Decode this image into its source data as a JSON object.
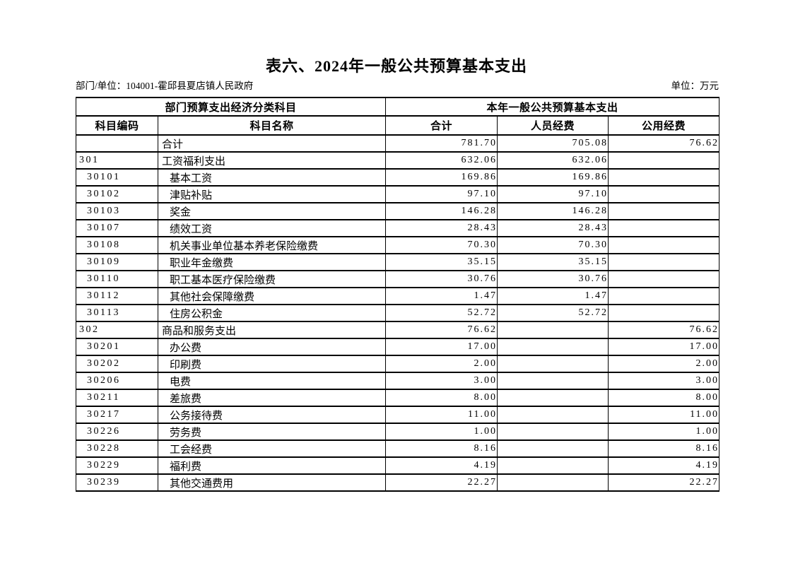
{
  "page": {
    "title": "表六、2024年一般公共预算基本支出",
    "meta_left": "部门/单位：104001-霍邱县夏店镇人民政府",
    "meta_right": "单位：万元",
    "text_color": "#000000",
    "background_color": "#ffffff"
  },
  "table": {
    "group_headers": {
      "left": "部门预算支出经济分类科目",
      "right": "本年一般公共预算基本支出"
    },
    "columns": {
      "code": "科目编码",
      "name": "科目名称",
      "total": "合计",
      "personnel": "人员经费",
      "public": "公用经费"
    },
    "rows": [
      {
        "code": "",
        "name": "合计",
        "total": "781.70",
        "personnel": "705.08",
        "public": "76.62",
        "level": 0
      },
      {
        "code": "301",
        "name": "工资福利支出",
        "total": "632.06",
        "personnel": "632.06",
        "public": "",
        "level": 0
      },
      {
        "code": "30101",
        "name": "基本工资",
        "total": "169.86",
        "personnel": "169.86",
        "public": "",
        "level": 1
      },
      {
        "code": "30102",
        "name": "津贴补贴",
        "total": "97.10",
        "personnel": "97.10",
        "public": "",
        "level": 1
      },
      {
        "code": "30103",
        "name": "奖金",
        "total": "146.28",
        "personnel": "146.28",
        "public": "",
        "level": 1
      },
      {
        "code": "30107",
        "name": "绩效工资",
        "total": "28.43",
        "personnel": "28.43",
        "public": "",
        "level": 1
      },
      {
        "code": "30108",
        "name": "机关事业单位基本养老保险缴费",
        "total": "70.30",
        "personnel": "70.30",
        "public": "",
        "level": 1
      },
      {
        "code": "30109",
        "name": "职业年金缴费",
        "total": "35.15",
        "personnel": "35.15",
        "public": "",
        "level": 1
      },
      {
        "code": "30110",
        "name": "职工基本医疗保险缴费",
        "total": "30.76",
        "personnel": "30.76",
        "public": "",
        "level": 1
      },
      {
        "code": "30112",
        "name": "其他社会保障缴费",
        "total": "1.47",
        "personnel": "1.47",
        "public": "",
        "level": 1
      },
      {
        "code": "30113",
        "name": "住房公积金",
        "total": "52.72",
        "personnel": "52.72",
        "public": "",
        "level": 1
      },
      {
        "code": "302",
        "name": "商品和服务支出",
        "total": "76.62",
        "personnel": "",
        "public": "76.62",
        "level": 0
      },
      {
        "code": "30201",
        "name": "办公费",
        "total": "17.00",
        "personnel": "",
        "public": "17.00",
        "level": 1
      },
      {
        "code": "30202",
        "name": "印刷费",
        "total": "2.00",
        "personnel": "",
        "public": "2.00",
        "level": 1
      },
      {
        "code": "30206",
        "name": "电费",
        "total": "3.00",
        "personnel": "",
        "public": "3.00",
        "level": 1
      },
      {
        "code": "30211",
        "name": "差旅费",
        "total": "8.00",
        "personnel": "",
        "public": "8.00",
        "level": 1
      },
      {
        "code": "30217",
        "name": "公务接待费",
        "total": "11.00",
        "personnel": "",
        "public": "11.00",
        "level": 1
      },
      {
        "code": "30226",
        "name": "劳务费",
        "total": "1.00",
        "personnel": "",
        "public": "1.00",
        "level": 1
      },
      {
        "code": "30228",
        "name": "工会经费",
        "total": "8.16",
        "personnel": "",
        "public": "8.16",
        "level": 1
      },
      {
        "code": "30229",
        "name": "福利费",
        "total": "4.19",
        "personnel": "",
        "public": "4.19",
        "level": 1
      },
      {
        "code": "30239",
        "name": "其他交通费用",
        "total": "22.27",
        "personnel": "",
        "public": "22.27",
        "level": 1
      }
    ]
  }
}
